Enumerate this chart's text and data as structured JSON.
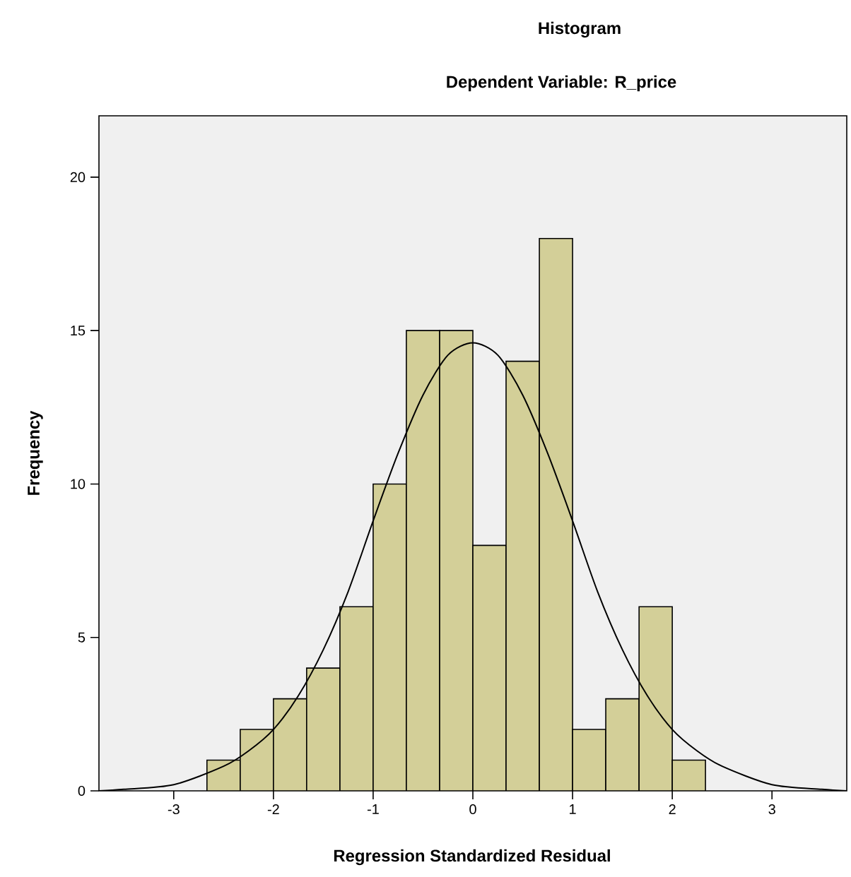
{
  "chart_data": {
    "type": "histogram",
    "title": "Histogram",
    "subtitle": "Dependent Variable: R_price",
    "xlabel": "Regression Standardized Residual",
    "ylabel": "Frequency",
    "xlim": [
      -3.75,
      3.75
    ],
    "ylim": [
      0,
      22
    ],
    "xticks": [
      -3,
      -2,
      -1,
      0,
      1,
      2,
      3
    ],
    "yticks": [
      0,
      5,
      10,
      15,
      20
    ],
    "series": [
      {
        "type": "histogram",
        "color": "#d3cf98",
        "bins": [
          -2.667,
          -2.333,
          -2,
          -1.667,
          -1.333,
          -1,
          -0.667,
          -0.333,
          0,
          0.333,
          0.667,
          1,
          1.333,
          1.667,
          2,
          2.333
        ],
        "values": [
          1,
          2,
          3,
          4,
          6,
          10,
          15,
          15,
          8,
          14,
          18,
          2,
          3,
          6,
          1
        ]
      },
      {
        "type": "line",
        "color": "#000000",
        "x": [
          -3.75,
          -3.5,
          -3,
          -2.5,
          -2.25,
          -2,
          -1.75,
          -1.5,
          -1.25,
          -1,
          -0.75,
          -0.5,
          -0.25,
          0,
          0.25,
          0.5,
          0.75,
          1,
          1.25,
          1.5,
          1.75,
          2,
          2.25,
          2.5,
          3,
          3.5,
          3.75
        ],
        "values": [
          0,
          0.05,
          0.2,
          0.8,
          1.3,
          2,
          3.1,
          4.6,
          6.5,
          8.8,
          11,
          12.9,
          14.2,
          14.6,
          14.2,
          12.9,
          11,
          8.8,
          6.5,
          4.6,
          3.1,
          2,
          1.3,
          0.8,
          0.2,
          0.05,
          0
        ]
      }
    ]
  }
}
